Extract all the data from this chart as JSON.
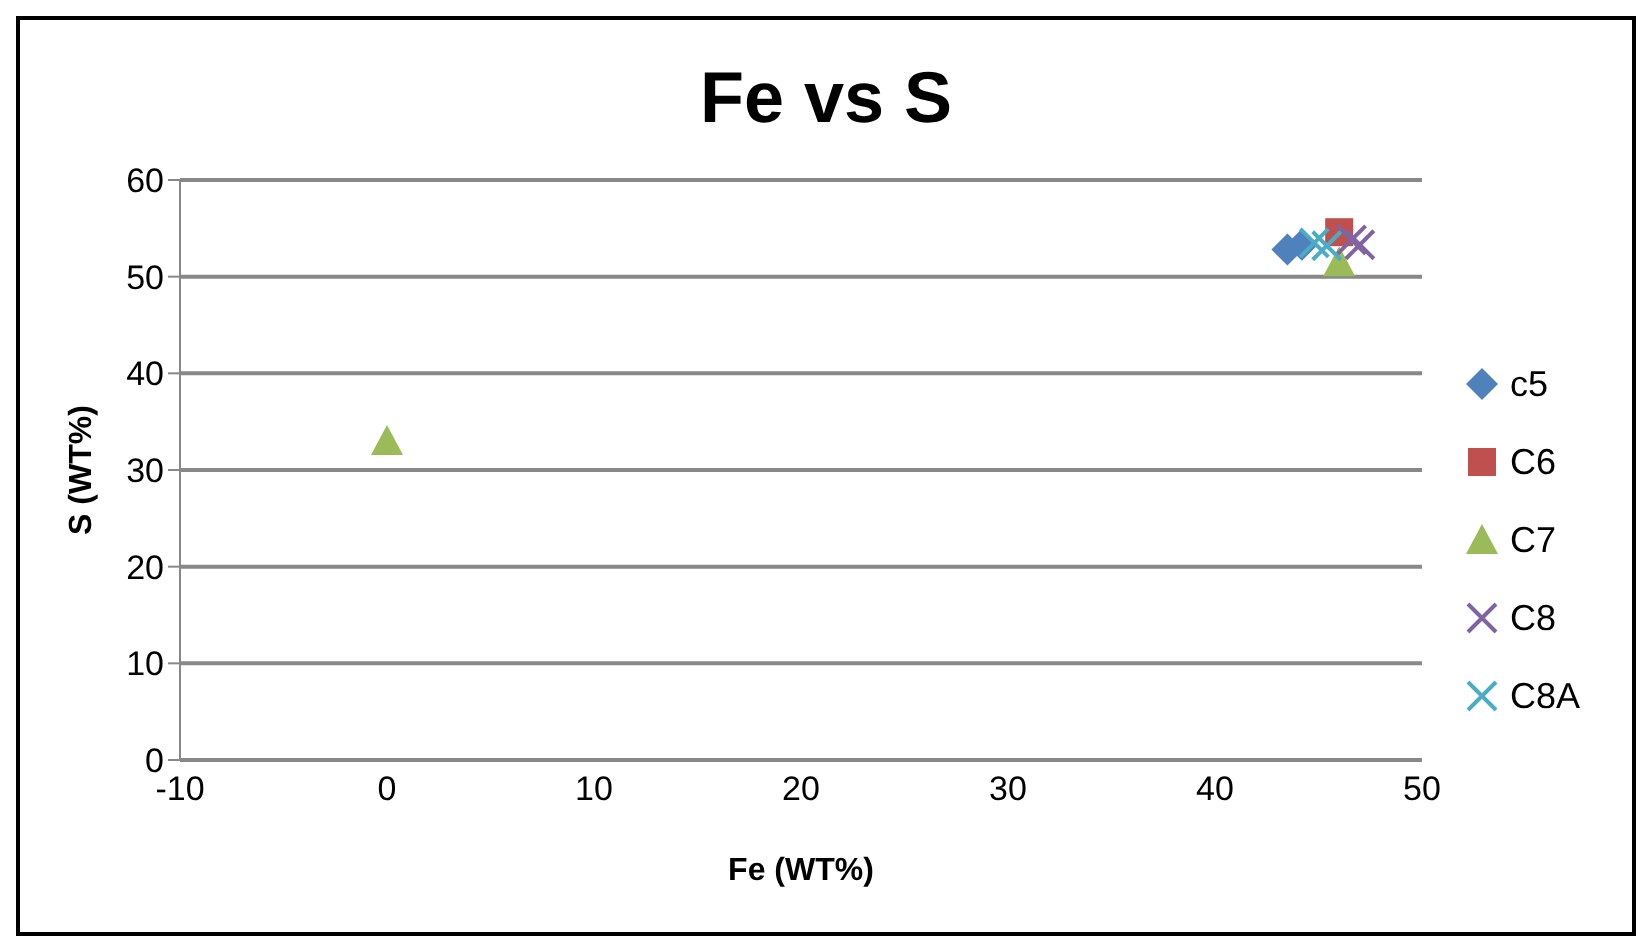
{
  "chart_data": {
    "type": "scatter",
    "title": "Fe vs S",
    "xlabel": "Fe (WT%)",
    "ylabel": "S (WT%)",
    "xlim": [
      -10,
      50
    ],
    "xticks": [
      -10,
      0,
      10,
      20,
      30,
      40,
      50
    ],
    "ylim": [
      0,
      60
    ],
    "yticks": [
      0,
      10,
      20,
      30,
      40,
      50,
      60
    ],
    "grid": "y",
    "legend": "right",
    "series": [
      {
        "name": "c5",
        "color": "#4f81bd",
        "marker": "diamond",
        "x": [
          43.5,
          44.2
        ],
        "values": [
          52.8,
          53.3
        ]
      },
      {
        "name": "C6",
        "color": "#c0504d",
        "marker": "square",
        "x": [
          46.0
        ],
        "values": [
          54.6
        ]
      },
      {
        "name": "C7",
        "color": "#9bbb59",
        "marker": "triangle",
        "x": [
          0,
          46.0
        ],
        "values": [
          33,
          51.5
        ]
      },
      {
        "name": "C8",
        "color": "#8064a2",
        "marker": "cross",
        "x": [
          47.0,
          46.6
        ],
        "values": [
          53.3,
          53.8
        ]
      },
      {
        "name": "C8A",
        "color": "#4bacc6",
        "marker": "cross",
        "x": [
          44.8,
          45.4
        ],
        "values": [
          53.5,
          53.2
        ]
      }
    ]
  }
}
